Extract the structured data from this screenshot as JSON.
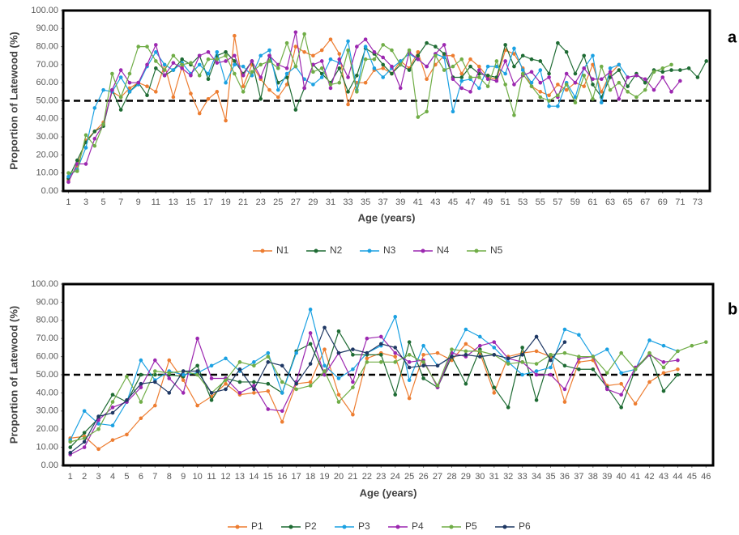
{
  "chart_data": [
    {
      "type": "line",
      "panel_label": "a",
      "y_label": "Proportion of Latewood (%)",
      "x_label": "Age (years)",
      "hline": 50,
      "x": [
        1,
        2,
        3,
        4,
        5,
        6,
        7,
        8,
        9,
        10,
        11,
        12,
        13,
        14,
        15,
        16,
        17,
        18,
        19,
        20,
        21,
        22,
        23,
        24,
        25,
        26,
        27,
        28,
        29,
        30,
        31,
        32,
        33,
        34,
        35,
        36,
        37,
        38,
        39,
        40,
        41,
        42,
        43,
        44,
        45,
        46,
        47,
        48,
        49,
        50,
        51,
        52,
        53,
        54,
        55,
        56,
        57,
        58,
        59,
        60,
        61,
        62,
        63,
        64,
        65,
        66,
        67,
        68,
        69,
        70,
        71,
        72,
        73,
        74
      ],
      "xlim": [
        0.4,
        74.4
      ],
      "xticks": [
        1,
        3,
        5,
        7,
        9,
        11,
        13,
        15,
        17,
        19,
        21,
        23,
        25,
        27,
        29,
        31,
        33,
        35,
        37,
        39,
        41,
        43,
        45,
        47,
        49,
        51,
        53,
        55,
        57,
        59,
        61,
        63,
        65,
        67,
        69,
        71,
        73
      ],
      "ylim": [
        0,
        100
      ],
      "yticks": [
        {
          "value": 0,
          "label": "0.00"
        },
        {
          "value": 10,
          "label": "10.00"
        },
        {
          "value": 20,
          "label": "20.00"
        },
        {
          "value": 30,
          "label": "30.00"
        },
        {
          "value": 40,
          "label": "40.00"
        },
        {
          "value": 50,
          "label": "50.00"
        },
        {
          "value": 60,
          "label": "60.00"
        },
        {
          "value": 70,
          "label": "70.00"
        },
        {
          "value": 80,
          "label": "80.00"
        },
        {
          "value": 90,
          "label": "90.00"
        },
        {
          "value": 100,
          "label": "100.00"
        }
      ],
      "series": [
        {
          "name": "N1",
          "color": "#ed7d31",
          "values": [
            6,
            14,
            28,
            33,
            38,
            55,
            52,
            57,
            60,
            58,
            55,
            70,
            52,
            69,
            54,
            43,
            51,
            55,
            39,
            86,
            58,
            70,
            62,
            56,
            52,
            59,
            80,
            77,
            75,
            78,
            84,
            76,
            48,
            60,
            60,
            67,
            68,
            65,
            72,
            68,
            77,
            62,
            70,
            75,
            75,
            65,
            73,
            69,
            63,
            62,
            78,
            76,
            68,
            58,
            55,
            53,
            59,
            56,
            60,
            58,
            70,
            55,
            65,
            70,
            null,
            null,
            null,
            null,
            null,
            null,
            null,
            null,
            null,
            null
          ]
        },
        {
          "name": "N2",
          "color": "#1e6b33",
          "values": [
            7,
            17,
            27,
            33,
            36,
            56,
            45,
            55,
            60,
            53,
            68,
            64,
            67,
            73,
            70,
            75,
            62,
            75,
            77,
            72,
            65,
            72,
            51,
            75,
            60,
            63,
            45,
            57,
            70,
            65,
            60,
            68,
            55,
            64,
            79,
            76,
            70,
            65,
            70,
            67,
            75,
            82,
            80,
            76,
            63,
            63,
            69,
            65,
            64,
            63,
            81,
            69,
            75,
            73,
            72,
            65,
            82,
            77,
            65,
            75,
            59,
            52,
            63,
            67,
            58,
            65,
            60,
            67,
            66,
            67,
            67,
            68,
            63,
            72
          ]
        },
        {
          "name": "N3",
          "color": "#1ba1e2",
          "values": [
            8,
            12,
            24,
            46,
            56,
            55,
            63,
            55,
            59,
            69,
            77,
            70,
            67,
            71,
            65,
            70,
            65,
            77,
            60,
            70,
            69,
            64,
            75,
            78,
            56,
            65,
            69,
            62,
            59,
            63,
            73,
            71,
            83,
            56,
            80,
            68,
            63,
            68,
            72,
            76,
            73,
            69,
            76,
            74,
            44,
            61,
            62,
            57,
            69,
            69,
            65,
            79,
            67,
            60,
            67,
            47,
            47,
            60,
            52,
            68,
            75,
            49,
            68,
            70,
            63,
            null,
            null,
            null,
            null,
            null,
            null,
            null,
            null,
            null
          ]
        },
        {
          "name": "N4",
          "color": "#9c27b0",
          "values": [
            5,
            15,
            15,
            29,
            37,
            56,
            67,
            60,
            60,
            70,
            81,
            64,
            71,
            68,
            64,
            75,
            77,
            71,
            72,
            75,
            64,
            72,
            63,
            75,
            70,
            68,
            88,
            57,
            70,
            72,
            57,
            73,
            63,
            80,
            84,
            77,
            74,
            69,
            57,
            77,
            73,
            69,
            76,
            81,
            62,
            57,
            55,
            67,
            62,
            61,
            72,
            59,
            64,
            66,
            60,
            63,
            52,
            65,
            60,
            68,
            62,
            62,
            66,
            51,
            63,
            64,
            62,
            56,
            63,
            55,
            61,
            null,
            null,
            null
          ]
        },
        {
          "name": "N5",
          "color": "#70ad47",
          "values": [
            10,
            11,
            31,
            25,
            37,
            65,
            52,
            65,
            80,
            80,
            72,
            67,
            75,
            70,
            71,
            64,
            73,
            73,
            75,
            65,
            55,
            66,
            70,
            72,
            68,
            82,
            69,
            87,
            66,
            68,
            59,
            60,
            78,
            55,
            73,
            73,
            81,
            78,
            70,
            78,
            41,
            44,
            75,
            67,
            69,
            73,
            63,
            63,
            58,
            72,
            59,
            42,
            65,
            58,
            52,
            50,
            53,
            59,
            49,
            64,
            51,
            69,
            56,
            60,
            55,
            52,
            56,
            66,
            68,
            70,
            null,
            null,
            null,
            null
          ]
        }
      ]
    },
    {
      "type": "line",
      "panel_label": "b",
      "y_label": "Proportion of Latewood (%)",
      "x_label": "Age (years)",
      "hline": 50,
      "x": [
        1,
        2,
        3,
        4,
        5,
        6,
        7,
        8,
        9,
        10,
        11,
        12,
        13,
        14,
        15,
        16,
        17,
        18,
        19,
        20,
        21,
        22,
        23,
        24,
        25,
        26,
        27,
        28,
        29,
        30,
        31,
        32,
        33,
        34,
        35,
        36,
        37,
        38,
        39,
        40,
        41,
        42,
        43,
        44,
        45,
        46
      ],
      "xlim": [
        0.5,
        46.5
      ],
      "xticks": [
        1,
        2,
        3,
        4,
        5,
        6,
        7,
        8,
        9,
        10,
        11,
        12,
        13,
        14,
        15,
        16,
        17,
        18,
        19,
        20,
        21,
        22,
        23,
        24,
        25,
        26,
        27,
        28,
        29,
        30,
        31,
        32,
        33,
        34,
        35,
        36,
        37,
        38,
        39,
        40,
        41,
        42,
        43,
        44,
        45,
        46
      ],
      "ylim": [
        0,
        100
      ],
      "yticks": [
        {
          "value": 0,
          "label": "0.00"
        },
        {
          "value": 10,
          "label": "10.00"
        },
        {
          "value": 20,
          "label": "20.00"
        },
        {
          "value": 30,
          "label": "30.00"
        },
        {
          "value": 40,
          "label": "40.00"
        },
        {
          "value": 50,
          "label": "50.00"
        },
        {
          "value": 60,
          "label": "60.00"
        },
        {
          "value": 70,
          "label": "70.00"
        },
        {
          "value": 80,
          "label": "80.00"
        },
        {
          "value": 90,
          "label": "90.00"
        },
        {
          "value": 100,
          "label": "100.00"
        }
      ],
      "series": [
        {
          "name": "P1",
          "color": "#ed7d31",
          "values": [
            15,
            16,
            9,
            14,
            17,
            26,
            33,
            58,
            47,
            33,
            38,
            45,
            39,
            40,
            41,
            24,
            45,
            46,
            64,
            39,
            28,
            59,
            62,
            60,
            37,
            61,
            62,
            58,
            67,
            62,
            40,
            60,
            62,
            63,
            60,
            35,
            57,
            58,
            44,
            45,
            34,
            46,
            51,
            53,
            null,
            null
          ]
        },
        {
          "name": "P2",
          "color": "#1e6b33",
          "values": [
            10,
            18,
            26,
            39,
            35,
            50,
            50,
            50,
            49,
            55,
            36,
            48,
            46,
            46,
            45,
            40,
            63,
            67,
            50,
            74,
            61,
            61,
            61,
            39,
            68,
            48,
            43,
            60,
            45,
            64,
            43,
            32,
            65,
            36,
            61,
            55,
            53,
            53,
            43,
            32,
            53,
            61,
            41,
            50,
            null,
            null
          ]
        },
        {
          "name": "P3",
          "color": "#1ba1e2",
          "values": [
            14,
            30,
            23,
            22,
            35,
            58,
            47,
            52,
            50,
            51,
            55,
            59,
            52,
            57,
            62,
            40,
            62,
            86,
            55,
            48,
            53,
            62,
            66,
            82,
            47,
            66,
            55,
            60,
            75,
            71,
            65,
            57,
            50,
            52,
            54,
            75,
            72,
            60,
            64,
            51,
            53,
            69,
            66,
            63,
            null,
            null
          ]
        },
        {
          "name": "P4",
          "color": "#9c27b0",
          "values": [
            6,
            10,
            25,
            32,
            35,
            43,
            58,
            48,
            40,
            70,
            48,
            48,
            40,
            44,
            31,
            30,
            46,
            73,
            50,
            62,
            46,
            70,
            71,
            62,
            57,
            58,
            43,
            62,
            60,
            66,
            68,
            59,
            57,
            50,
            50,
            42,
            59,
            60,
            42,
            39,
            54,
            61,
            57,
            58,
            null,
            null
          ]
        },
        {
          "name": "P5",
          "color": "#70ad47",
          "values": [
            13,
            15,
            20,
            35,
            49,
            35,
            52,
            51,
            52,
            50,
            40,
            47,
            57,
            55,
            60,
            46,
            42,
            44,
            52,
            35,
            43,
            57,
            57,
            57,
            61,
            57,
            44,
            64,
            63,
            63,
            61,
            56,
            57,
            56,
            61,
            62,
            60,
            60,
            51,
            62,
            53,
            62,
            54,
            63,
            66,
            68
          ]
        },
        {
          "name": "P6",
          "color": "#1f3864",
          "values": [
            7,
            13,
            27,
            29,
            36,
            45,
            46,
            40,
            52,
            52,
            40,
            42,
            53,
            42,
            57,
            55,
            45,
            56,
            76,
            62,
            64,
            62,
            67,
            65,
            54,
            55,
            55,
            60,
            61,
            60,
            61,
            59,
            61,
            71,
            58,
            68,
            null,
            null,
            null,
            null,
            null,
            null,
            null,
            null,
            null,
            null
          ]
        }
      ]
    }
  ]
}
